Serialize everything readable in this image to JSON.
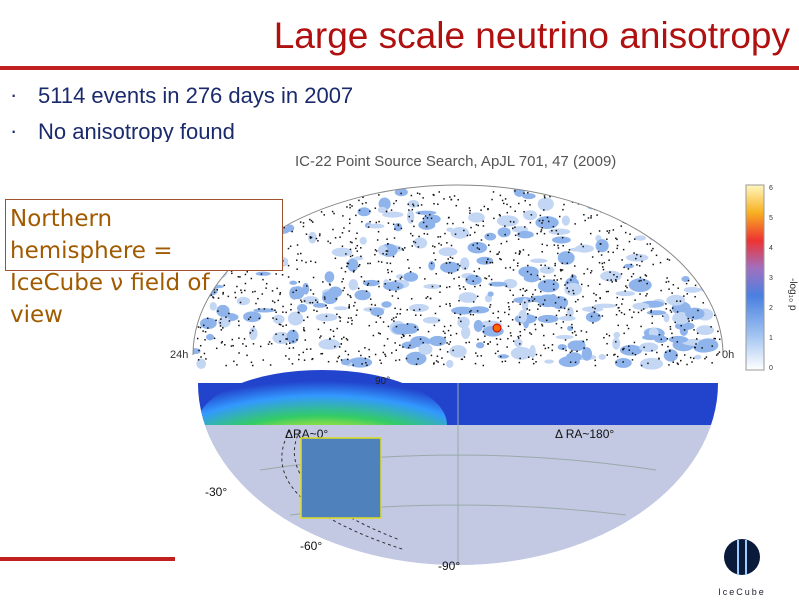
{
  "slide": {
    "title": "Large scale neutrino anisotropy",
    "bullets": [
      "5114 events in 276 days in 2007",
      "No anisotropy found"
    ],
    "figure_caption": "IC-22 Point Source Search,   ApJL 701, 47 (2009)",
    "callout": "Northern hemisphere = IceCube ν field of view",
    "skymap": {
      "left_label": "24h",
      "right_label": "0h",
      "colorbar_label": "-log₁₀ p",
      "colorbar_ticks": [
        "6",
        "5",
        "4",
        "3",
        "2",
        "1",
        "0"
      ]
    },
    "lower_map": {
      "top_label": "90°",
      "left_center_label": "ΔRA~0°",
      "right_center_label": "Δ RA~180°",
      "lat_labels": [
        "-30°",
        "-60°",
        "-90°"
      ]
    },
    "logo": "IceCube"
  }
}
